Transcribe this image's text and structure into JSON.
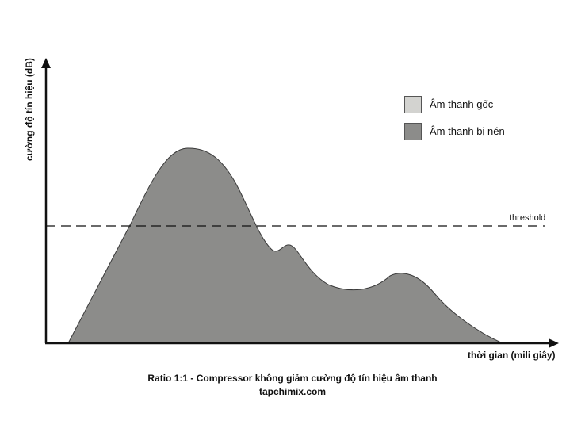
{
  "diagram": {
    "y_axis_label": "cường độ tín hiệu (dB)",
    "x_axis_label": "thời gian (mili giây)",
    "threshold_label": "threshold",
    "legend": [
      {
        "label": "Âm thanh gốc",
        "color": "#d3d3d0"
      },
      {
        "label": "Âm thanh bị nén",
        "color": "#8c8c8a"
      }
    ],
    "caption": "Ratio 1:1 - Compressor không giảm cường độ tín hiệu âm thanh",
    "source": "tapchimix.com"
  },
  "colors": {
    "axis": "#111111",
    "signal_fill": "#8c8c8a",
    "signal_stroke": "#3a3a3a",
    "threshold_line": "#111111"
  }
}
